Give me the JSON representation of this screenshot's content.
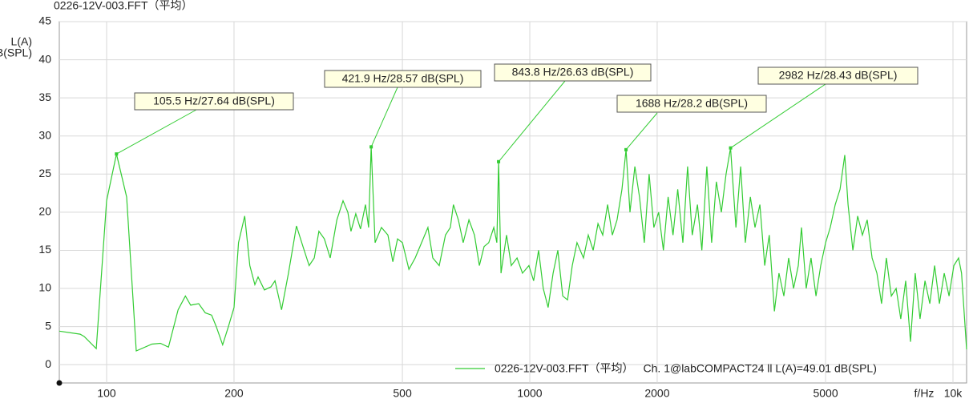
{
  "chart_data": {
    "type": "line",
    "title": "0226-12V-003.FFT（平均）",
    "y_label": [
      "L(A)",
      "dB(SPL)"
    ],
    "x_label": "f/Hz",
    "log_x": true,
    "grid": true,
    "xlim": [
      77.3,
      10770
    ],
    "ylim": [
      -2.4,
      45
    ],
    "xticks": [
      100,
      200,
      500,
      1000,
      2000,
      5000,
      {
        "value": 10000,
        "label": "10k"
      }
    ],
    "yticks": [
      0,
      5,
      10,
      15,
      20,
      25,
      30,
      35,
      40,
      45
    ],
    "x": [
      77.3,
      86.6,
      88.5,
      94.5,
      100,
      105.5,
      111.5,
      117.5,
      128,
      134,
      140,
      147.5,
      153.5,
      158,
      165,
      171,
      177,
      181.6,
      188,
      194,
      200,
      205,
      212,
      218,
      224,
      228,
      236,
      244.5,
      250,
      259,
      269,
      281,
      291,
      301,
      309.5,
      317.5,
      327,
      337.5,
      350,
      362,
      371.5,
      378,
      388,
      398,
      409,
      416,
      421.9,
      431,
      446,
      462,
      474.5,
      487,
      500,
      518,
      536,
      555,
      574.5,
      590,
      611,
      632,
      649,
      660,
      678,
      696,
      718,
      740,
      760,
      780,
      800,
      822,
      836,
      843.8,
      855,
      881,
      904,
      933,
      961,
      995,
      1021,
      1049,
      1076,
      1105,
      1135,
      1165,
      1196,
      1228,
      1260,
      1293,
      1339,
      1375,
      1412,
      1449,
      1487,
      1527,
      1567,
      1608,
      1651,
      1688,
      1725,
      1771,
      1817,
      1865,
      1914,
      1964,
      2016,
      2069,
      2123,
      2180,
      2237,
      2300,
      2360,
      2420,
      2490,
      2550,
      2620,
      2690,
      2760,
      2836,
      2910,
      2982,
      3070,
      3150,
      3230,
      3320,
      3405,
      3497,
      3590,
      3680,
      3785,
      3880,
      3985,
      4090,
      4200,
      4310,
      4385,
      4500,
      4620,
      4745,
      4870,
      5000,
      5130,
      5270,
      5410,
      5550,
      5650,
      5800,
      5955,
      6110,
      6270,
      6440,
      6610,
      6780,
      6960,
      7150,
      7340,
      7530,
      7730,
      7935,
      8145,
      8360,
      8590,
      8815,
      9050,
      9290,
      9535,
      9790,
      10050,
      10310,
      10480,
      10770
    ],
    "series": [
      {
        "name": "0226-12V-003.FFT（平均）",
        "color": "#33cc33",
        "values": [
          4.4,
          4.0,
          3.7,
          2.1,
          21.5,
          27.64,
          22,
          1.8,
          2.7,
          2.8,
          2.3,
          7.2,
          9.0,
          7.8,
          8.0,
          6.8,
          6.5,
          5.0,
          2.6,
          5.0,
          7.5,
          16,
          19.5,
          13,
          10.5,
          11.5,
          9.8,
          10.2,
          11.0,
          7.2,
          12,
          18.2,
          15.5,
          13,
          14,
          17.5,
          16.5,
          14,
          19,
          21.5,
          20,
          17.5,
          19.8,
          17.8,
          21,
          18,
          28.57,
          16,
          18,
          17,
          13.5,
          16.5,
          16,
          12.5,
          14,
          16,
          18,
          14,
          13,
          17,
          18,
          21,
          19,
          16,
          19,
          17,
          13,
          15.5,
          16,
          18,
          16,
          26.63,
          12,
          17,
          13,
          14,
          12,
          13,
          11,
          15,
          10,
          7.5,
          12,
          15,
          9,
          8.5,
          13,
          16,
          14,
          17,
          15,
          18.5,
          17,
          21,
          17,
          19,
          23,
          28.2,
          20,
          26,
          22,
          16,
          25,
          18,
          20,
          15,
          22,
          17,
          23,
          16,
          26,
          17,
          21,
          15,
          26,
          16,
          24,
          20,
          25,
          28.43,
          18,
          26,
          16,
          22,
          18,
          21,
          13,
          17,
          7,
          12,
          9,
          14,
          10,
          13,
          18,
          10,
          14,
          9,
          13,
          16,
          18,
          21,
          23,
          27.5,
          21,
          15,
          19.5,
          17,
          19,
          14,
          12,
          8,
          14,
          9,
          10,
          6,
          11,
          3,
          12,
          6,
          11,
          8,
          13,
          8,
          12,
          9,
          13,
          14,
          12,
          2
        ]
      }
    ],
    "legend_note": "Ch. 1@labCOMPACT24 ll L(A)=49.01 dB(SPL)",
    "annotations": [
      {
        "text": "105.5 Hz/27.64 dB(SPL)",
        "x": 105.5,
        "y": 27.64
      },
      {
        "text": "421.9 Hz/28.57 dB(SPL)",
        "x": 421.9,
        "y": 28.57
      },
      {
        "text": "843.8 Hz/26.63 dB(SPL)",
        "x": 843.8,
        "y": 26.63
      },
      {
        "text": "1688 Hz/28.2 dB(SPL)",
        "x": 1688,
        "y": 28.2
      },
      {
        "text": "2982 Hz/28.43 dB(SPL)",
        "x": 2982,
        "y": 28.43
      }
    ]
  }
}
